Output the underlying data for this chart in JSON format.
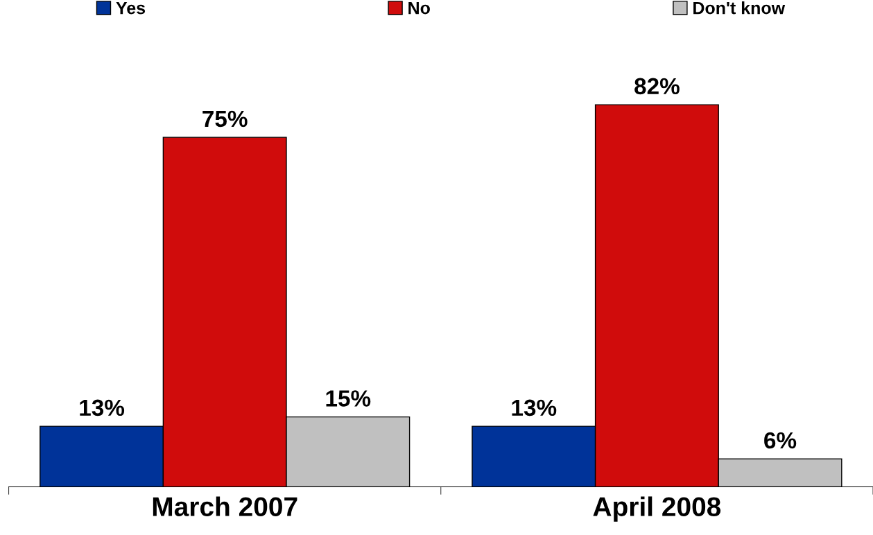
{
  "chart_data": {
    "type": "bar",
    "categories": [
      "March 2007",
      "April 2008"
    ],
    "series": [
      {
        "name": "Yes",
        "color": "#003399",
        "values": [
          13,
          13
        ],
        "value_labels": [
          "13%",
          "13%"
        ]
      },
      {
        "name": "No",
        "color": "#d00c0c",
        "values": [
          75,
          82
        ],
        "value_labels": [
          "75%",
          "82%"
        ]
      },
      {
        "name": "Don't know",
        "color": "#c0c0c0",
        "values": [
          15,
          6
        ],
        "value_labels": [
          "15%",
          "6%"
        ]
      }
    ],
    "legend": "top",
    "grid": false,
    "tick_labels": "x"
  }
}
